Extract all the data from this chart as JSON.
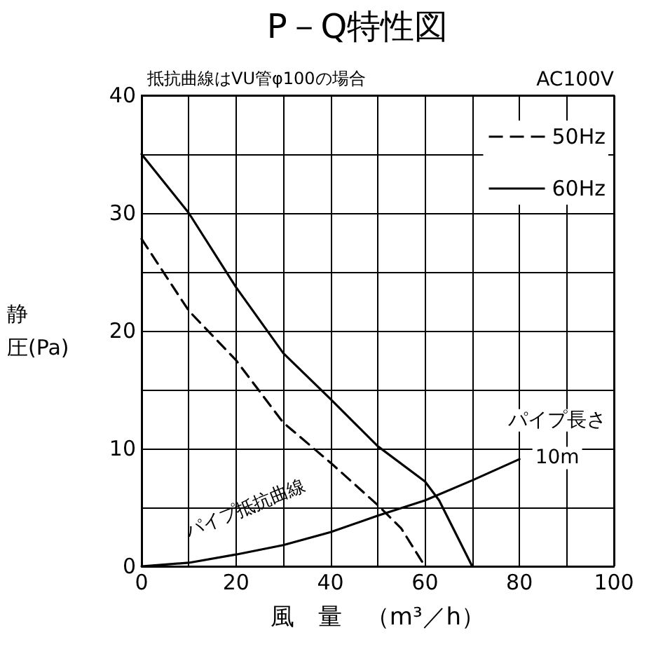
{
  "chart_data": {
    "type": "line",
    "title": "P－Q特性図",
    "xlabel": "風　量　（m³／h）",
    "ylabel": "静圧(Pa)",
    "series": [
      {
        "name": "50Hz",
        "color": "#000000",
        "line_style": "dashed",
        "x": [
          0,
          10,
          20,
          30,
          40,
          50,
          55,
          60
        ],
        "values": [
          27.8,
          21.7,
          17.5,
          12.2,
          8.8,
          5.2,
          3.2,
          0
        ]
      },
      {
        "name": "60Hz",
        "color": "#000000",
        "line_style": "solid",
        "x": [
          0,
          10,
          20,
          30,
          40,
          50,
          60,
          63,
          66,
          70
        ],
        "values": [
          35,
          30,
          23.7,
          18.1,
          14.2,
          10.2,
          7.2,
          5.6,
          3.2,
          0
        ]
      },
      {
        "color": "#000000",
        "line_style": "solid",
        "x": [
          0,
          10,
          20,
          30,
          40,
          50,
          60,
          70,
          80
        ],
        "values": [
          0,
          0.3,
          1.0,
          1.8,
          2.9,
          4.3,
          5.6,
          7.3,
          9.1
        ]
      }
    ],
    "annotations": [
      "抵抗曲線はVU管φ100の場合",
      "AC100V",
      "パイプ抵抗曲線",
      "パイプ長さ",
      "10m"
    ],
    "xlim": [
      0,
      100
    ],
    "xticks": [
      0,
      {
        "value": 10,
        "label": null
      },
      20,
      {
        "value": 30,
        "label": null
      },
      40,
      {
        "value": 50,
        "label": null
      },
      60,
      {
        "value": 70,
        "label": null
      },
      80,
      {
        "value": 90,
        "label": null
      },
      100
    ],
    "ylim": [
      0,
      40
    ],
    "yticks": [
      0,
      {
        "value": 5,
        "label": null
      },
      10,
      {
        "value": 15,
        "label": null
      },
      20,
      {
        "value": 25,
        "label": null
      },
      30,
      {
        "value": 35,
        "label": null
      },
      40
    ],
    "grid": true,
    "legend": "top right",
    "marker": "none"
  }
}
